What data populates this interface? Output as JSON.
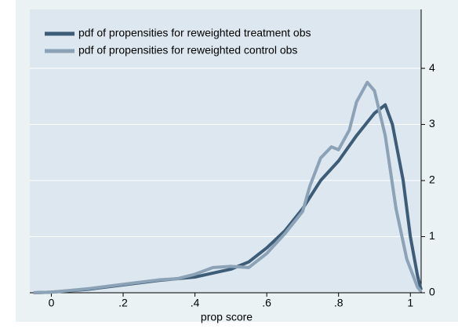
{
  "chart_data": {
    "type": "line",
    "xlabel": "prop score",
    "xlim": [
      -0.06,
      1.03
    ],
    "ylim": [
      0,
      5.05
    ],
    "xticks": [
      0,
      {
        "value": 0.2,
        "label": ".2"
      },
      {
        "value": 0.4,
        "label": ".4"
      },
      {
        "value": 0.6,
        "label": ".6"
      },
      {
        "value": 0.8,
        "label": ".8"
      },
      1
    ],
    "yticks": [
      0,
      1,
      2,
      3,
      4
    ],
    "grid": true,
    "legend": "top-left",
    "series": [
      {
        "name": "pdf of propensities for reweighted treatment obs",
        "color": "#3d5c77",
        "x": [
          -0.05,
          0,
          0.1,
          0.2,
          0.3,
          0.4,
          0.45,
          0.5,
          0.55,
          0.6,
          0.65,
          0.7,
          0.75,
          0.8,
          0.85,
          0.9,
          0.93,
          0.95,
          0.98,
          1.0,
          1.02,
          1.03
        ],
        "values": [
          0,
          0.01,
          0.06,
          0.14,
          0.22,
          0.28,
          0.35,
          0.42,
          0.55,
          0.8,
          1.1,
          1.5,
          2.0,
          2.35,
          2.8,
          3.2,
          3.35,
          3.0,
          2.0,
          1.0,
          0.3,
          0.05
        ]
      },
      {
        "name": "pdf of propensities for reweighted control obs",
        "color": "#8ca2b6",
        "x": [
          -0.05,
          0,
          0.1,
          0.2,
          0.3,
          0.35,
          0.4,
          0.45,
          0.5,
          0.55,
          0.6,
          0.65,
          0.7,
          0.72,
          0.75,
          0.78,
          0.8,
          0.83,
          0.85,
          0.88,
          0.9,
          0.93,
          0.96,
          0.99,
          1.02,
          1.03
        ],
        "values": [
          0,
          0.01,
          0.07,
          0.15,
          0.23,
          0.25,
          0.33,
          0.45,
          0.47,
          0.45,
          0.7,
          1.05,
          1.45,
          1.9,
          2.4,
          2.6,
          2.55,
          2.9,
          3.4,
          3.75,
          3.6,
          2.8,
          1.5,
          0.6,
          0.1,
          0.02
        ]
      }
    ]
  }
}
